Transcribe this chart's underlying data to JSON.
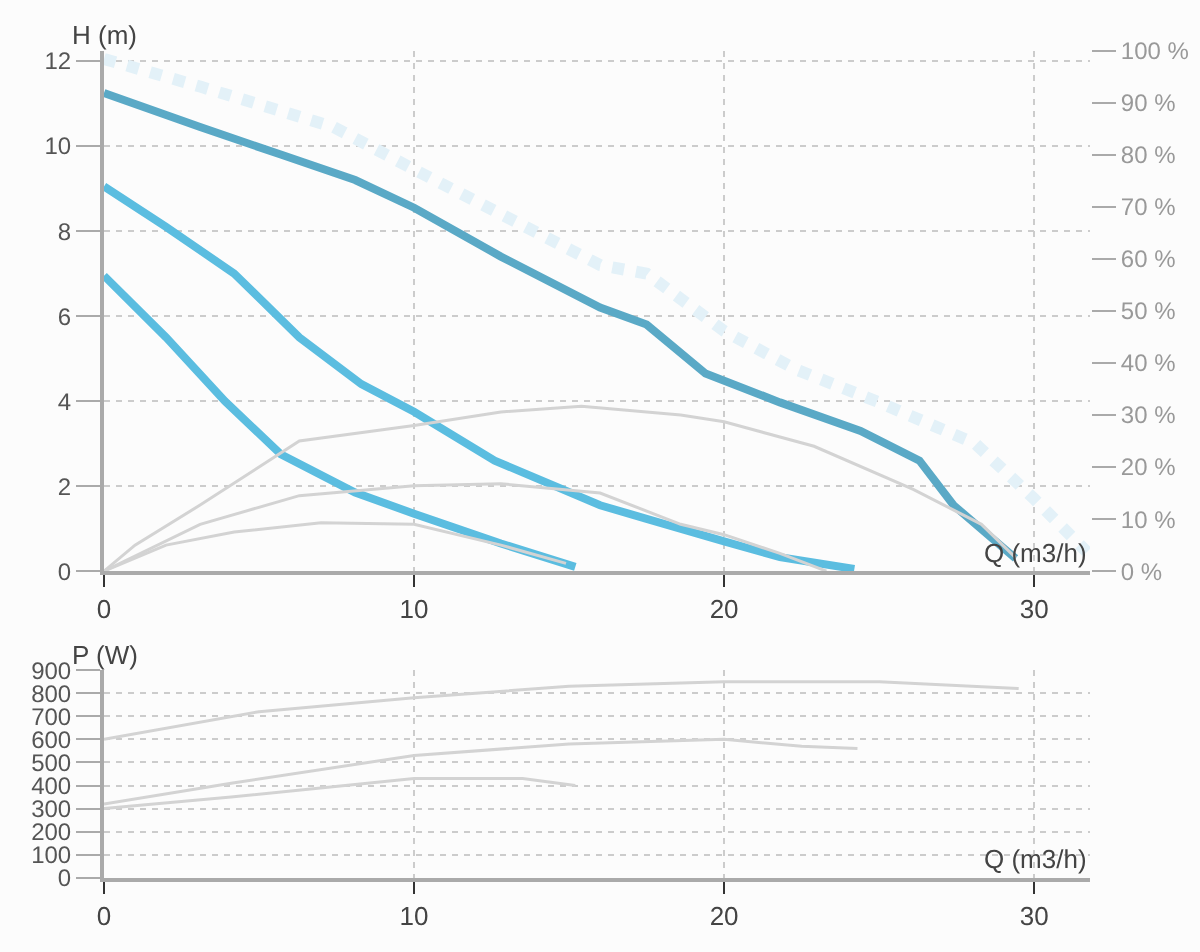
{
  "chart_data": [
    {
      "type": "line",
      "xlabel": "Q (m3/h)",
      "ylabel": "H (m)",
      "xlim": [
        0,
        31.8
      ],
      "xticks": [
        0,
        10,
        20,
        30
      ],
      "ylim": [
        0,
        12.24
      ],
      "yticks": [
        0,
        2,
        4,
        6,
        8,
        10,
        12
      ],
      "y2lim": [
        0,
        100
      ],
      "y2ticks": [
        {
          "value": 0,
          "label": "0 %"
        },
        {
          "value": 10,
          "label": "10 %"
        },
        {
          "value": 20,
          "label": "20 %"
        },
        {
          "value": 30,
          "label": "30 %"
        },
        {
          "value": 40,
          "label": "40 %"
        },
        {
          "value": 50,
          "label": "50 %"
        },
        {
          "value": 60,
          "label": "60 %"
        },
        {
          "value": 70,
          "label": "70 %"
        },
        {
          "value": 80,
          "label": "80 %"
        },
        {
          "value": 90,
          "label": "90 %"
        },
        {
          "value": 100,
          "label": "100 %"
        }
      ],
      "grid": true,
      "marker": "none",
      "series": [
        {
          "color": "#e3f1f8",
          "line_style": "dotted",
          "x": [
            0,
            3.1,
            7.4,
            10,
            12.8,
            16,
            17.5,
            20,
            22.3,
            25,
            28.1,
            30,
            31.7
          ],
          "values": [
            12.05,
            11.4,
            10.45,
            9.45,
            8.4,
            7.2,
            7.0,
            5.65,
            4.75,
            3.97,
            3.0,
            1.7,
            0.45
          ]
        },
        {
          "color": "#5aa9c6",
          "x": [
            0,
            3.1,
            5.7,
            8.1,
            10,
            12.8,
            16,
            17.5,
            19.4,
            21.8,
            24.4,
            26.3,
            27.4,
            29.4
          ],
          "values": [
            11.25,
            10.45,
            9.8,
            9.2,
            8.55,
            7.4,
            6.2,
            5.8,
            4.65,
            3.97,
            3.3,
            2.6,
            1.55,
            0.3
          ]
        },
        {
          "color": "#5bbde0",
          "x": [
            0,
            2,
            4.2,
            6.3,
            8.3,
            10,
            12.6,
            16,
            17.5,
            20,
            21.8,
            24.2
          ],
          "values": [
            9.05,
            8.1,
            7.0,
            5.5,
            4.4,
            3.75,
            2.6,
            1.55,
            1.23,
            0.7,
            0.33,
            0.05
          ]
        },
        {
          "color": "#5bbde0",
          "x": [
            0,
            2,
            3.9,
            5.7,
            8.1,
            10,
            12.8,
            15.2
          ],
          "values": [
            6.95,
            5.5,
            4.0,
            2.75,
            1.85,
            1.35,
            0.65,
            0.1
          ]
        },
        {
          "color": "#d3d3d3",
          "axis": "y2",
          "x": [
            0,
            1,
            3.1,
            6.3,
            10,
            12.8,
            15.4,
            18.6,
            20,
            22.9,
            26.1,
            28.3,
            29.4
          ],
          "values": [
            0,
            5,
            12.7,
            25,
            28,
            30.6,
            31.7,
            30,
            28.7,
            24,
            15.7,
            9,
            2.6
          ]
        },
        {
          "color": "#d3d3d3",
          "axis": "y2",
          "x": [
            0,
            3.1,
            6.3,
            10,
            12.8,
            16,
            18.6,
            20,
            21.8,
            23.3
          ],
          "values": [
            0,
            9,
            14.5,
            16.4,
            16.8,
            15,
            9,
            7,
            3.4,
            0
          ]
        },
        {
          "color": "#d3d3d3",
          "axis": "y2",
          "x": [
            0,
            2,
            4.2,
            7,
            10,
            12.8,
            14.9
          ],
          "values": [
            0,
            5,
            7.5,
            9.3,
            9,
            5,
            1.5
          ]
        }
      ]
    },
    {
      "type": "line",
      "xlabel": "Q (m3/h)",
      "ylabel": "P (W)",
      "xlim": [
        0,
        31.8
      ],
      "xticks": [
        0,
        10,
        20,
        30
      ],
      "ylim": [
        0,
        900
      ],
      "yticks": [
        0,
        100,
        200,
        300,
        400,
        500,
        600,
        700,
        800,
        900
      ],
      "grid": true,
      "marker": "none",
      "series": [
        {
          "color": "#d3d3d3",
          "x": [
            0,
            5,
            10,
            15,
            20,
            25,
            29.5
          ],
          "values": [
            600,
            720,
            780,
            830,
            850,
            850,
            820
          ]
        },
        {
          "color": "#d3d3d3",
          "x": [
            0,
            4.1,
            10,
            15,
            20,
            22.5,
            24.3
          ],
          "values": [
            320,
            410,
            530,
            580,
            600,
            570,
            560
          ]
        },
        {
          "color": "#d3d3d3",
          "x": [
            0,
            4.1,
            10,
            13.5,
            15.2
          ],
          "values": [
            300,
            350,
            430,
            430,
            400
          ]
        }
      ]
    }
  ]
}
